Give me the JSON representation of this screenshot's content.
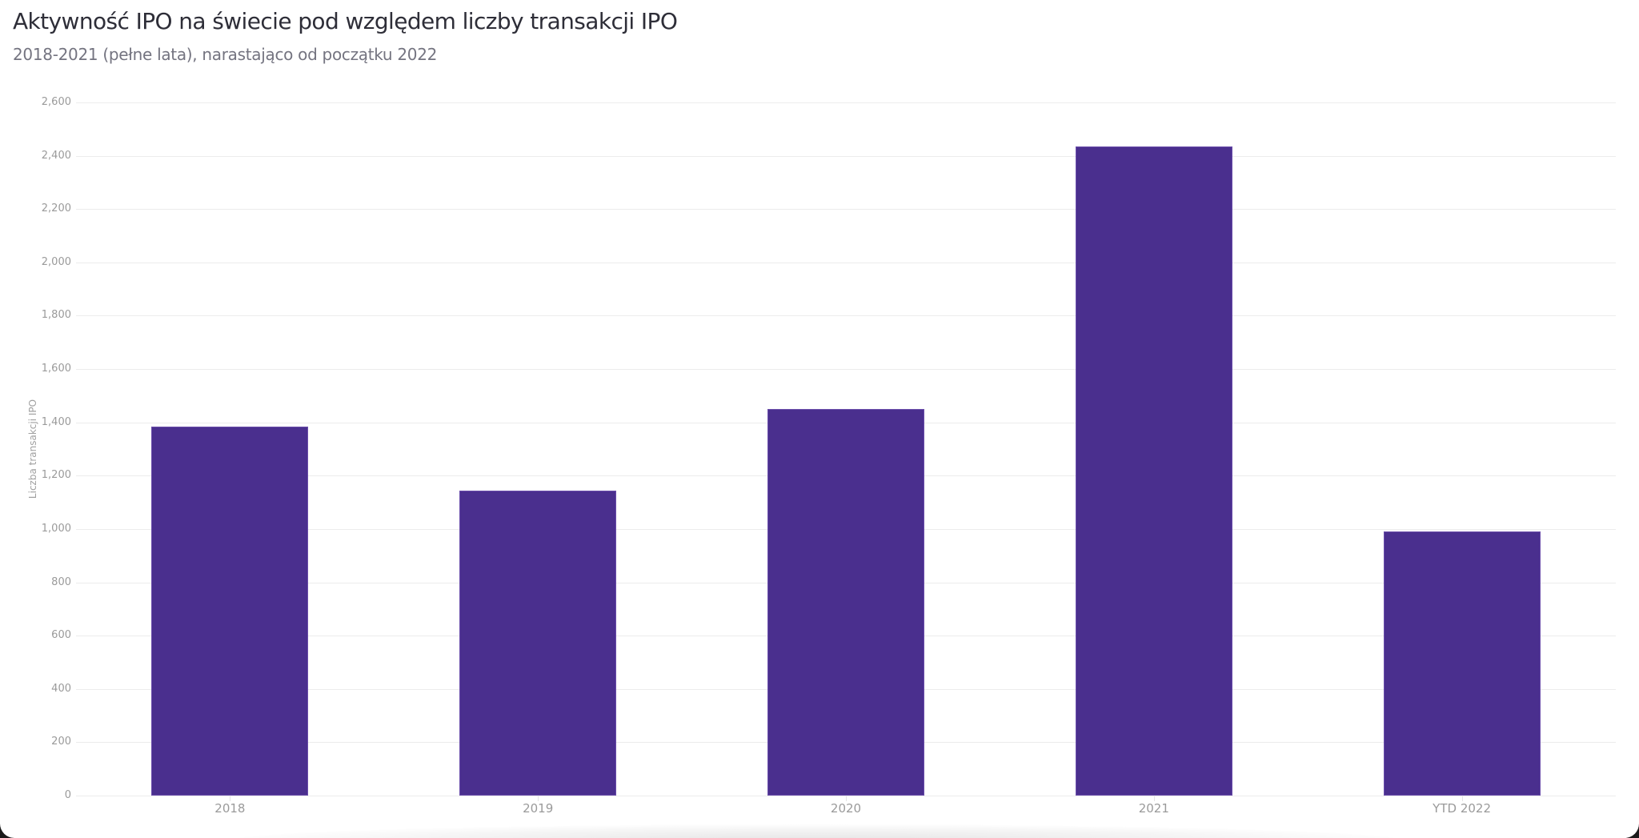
{
  "header": {
    "title": "Aktywność IPO na świecie pod względem liczby transakcji IPO",
    "subtitle": "2018-2021 (pełne lata), narastająco od początku 2022"
  },
  "axis": {
    "ylabel": "Liczba transakcji IPO",
    "yticks": [
      "0",
      "200",
      "400",
      "600",
      "800",
      "1,000",
      "1,200",
      "1,400",
      "1,600",
      "1,800",
      "2,000",
      "2,200",
      "2,400",
      "2,600"
    ],
    "xticks": [
      "2018",
      "2019",
      "2020",
      "2021",
      "YTD 2022"
    ]
  },
  "colors": {
    "bar": "#4a2f8e"
  },
  "chart_data": {
    "type": "bar",
    "title": "Aktywność IPO na świecie pod względem liczby transakcji IPO",
    "subtitle": "2018-2021 (pełne lata), narastająco od początku 2022",
    "categories": [
      "2018",
      "2019",
      "2020",
      "2021",
      "YTD 2022"
    ],
    "values": [
      1385,
      1145,
      1451,
      2435,
      992
    ],
    "xlabel": "",
    "ylabel": "Liczba transakcji IPO",
    "ylim": [
      0,
      2600
    ],
    "yticks": [
      0,
      200,
      400,
      600,
      800,
      1000,
      1200,
      1400,
      1600,
      1800,
      2000,
      2200,
      2400,
      2600
    ],
    "grid": true,
    "legend": "none",
    "bar_color": "#4a2f8e"
  }
}
